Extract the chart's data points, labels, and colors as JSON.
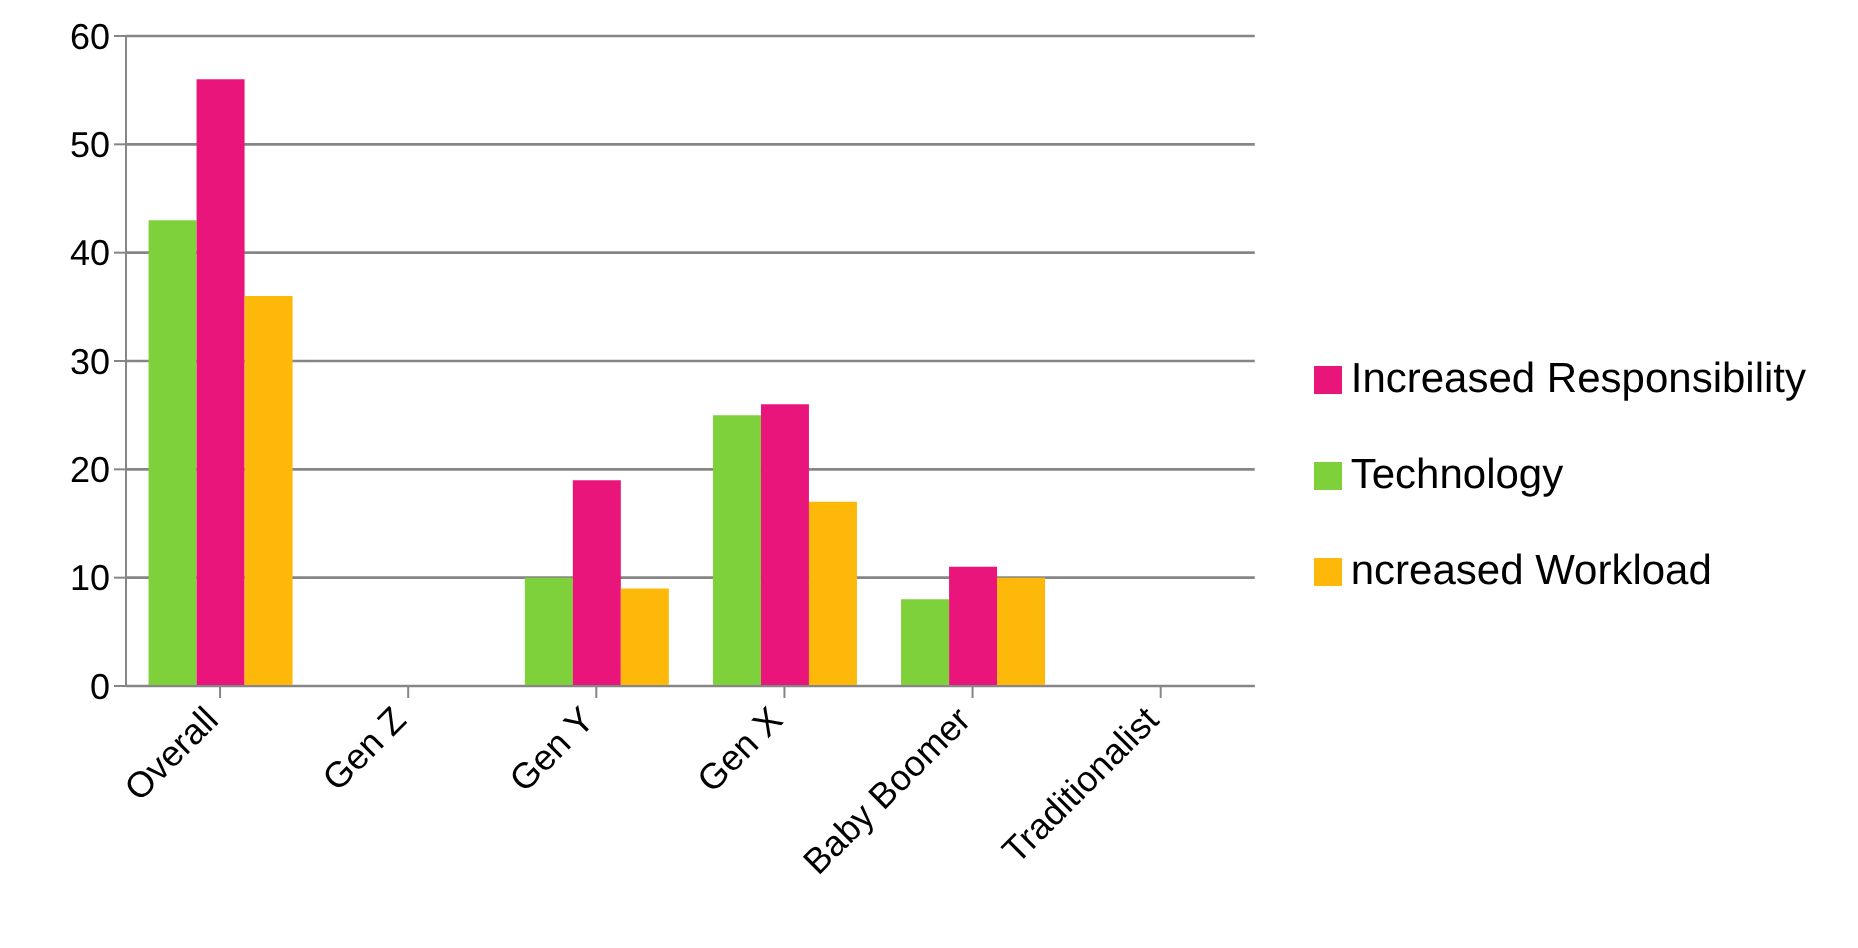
{
  "chart_data": {
    "type": "bar",
    "categories": [
      "Overall",
      "Gen Z",
      "Gen Y",
      "Gen X",
      "Baby Boomer",
      "Traditionalist"
    ],
    "series": [
      {
        "name": "Technology",
        "color": "#7fd13b",
        "values": [
          43,
          null,
          10,
          25,
          8,
          null
        ]
      },
      {
        "name": "Increased Responsibility",
        "color": "#ea157a",
        "values": [
          56,
          null,
          19,
          26,
          11,
          null
        ]
      },
      {
        "name": "ncreased Workload",
        "color": "#feb80a",
        "values": [
          36,
          null,
          9,
          17,
          10,
          null
        ]
      }
    ],
    "ylim": [
      0,
      60
    ],
    "yticks": [
      0,
      10,
      20,
      30,
      40,
      50,
      60
    ],
    "grid": "y",
    "legend": "right"
  }
}
